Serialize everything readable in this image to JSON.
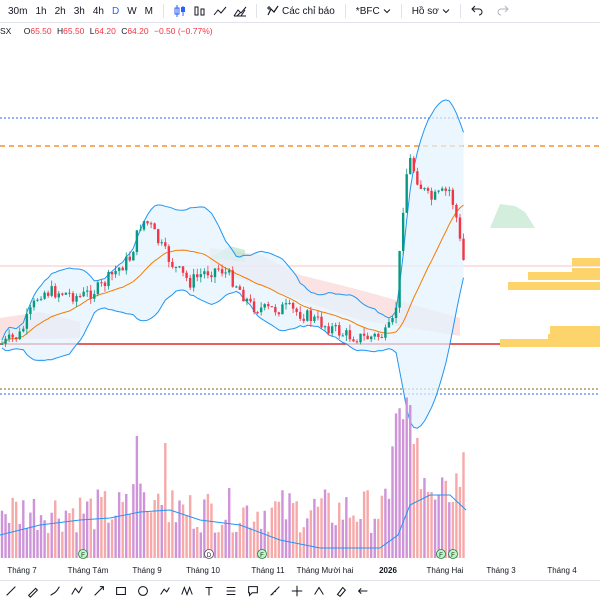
{
  "toolbar": {
    "timeframes": [
      {
        "label": "30m",
        "active": false
      },
      {
        "label": "1h",
        "active": false
      },
      {
        "label": "2h",
        "active": false
      },
      {
        "label": "3h",
        "active": false
      },
      {
        "label": "4h",
        "active": false
      },
      {
        "label": "D",
        "active": true
      },
      {
        "label": "W",
        "active": false
      },
      {
        "label": "M",
        "active": false
      }
    ],
    "indicators_label": "Các chỉ báo",
    "compare_label": "*BFC",
    "profile_label": "Hồ sơ"
  },
  "legend": {
    "symbol": "SX",
    "open_key": "O",
    "open": "65.50",
    "high_key": "H",
    "high": "65.50",
    "low_key": "L",
    "low": "64.20",
    "close_key": "C",
    "close": "64.20",
    "change": "−0.50 (−0.77%)"
  },
  "xaxis": {
    "labels": [
      "Tháng 7",
      "Tháng Tám",
      "Tháng 9",
      "Tháng 10",
      "Tháng 11",
      "Tháng Mười hai",
      "2026",
      "Tháng Hai",
      "Tháng 3",
      "Tháng 4"
    ]
  },
  "events": [
    "F",
    "D",
    "F",
    "F",
    "F"
  ],
  "colors": {
    "up": "#089981",
    "down": "#f23645",
    "accent": "#2962ff",
    "bollinger": "#2196f3",
    "ma": "#f57c00",
    "volume_up": "#ce93d8",
    "volume_down": "#f7a8a8",
    "profile": "#fdd36b"
  },
  "drawing_tools": [
    "trend-line",
    "pencil",
    "brush",
    "path",
    "arrow",
    "rectangle",
    "ellipse",
    "position",
    "pattern",
    "text",
    "fib",
    "annotate",
    "measure",
    "crosshair",
    "forecast",
    "eraser",
    "arrow-left"
  ]
}
